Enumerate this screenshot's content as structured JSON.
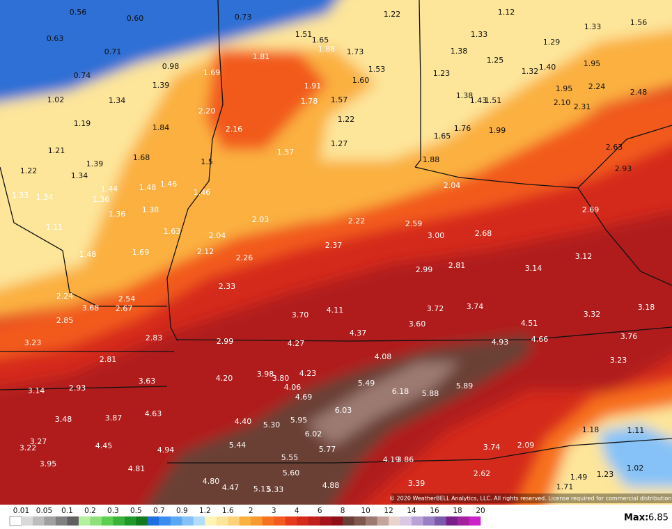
{
  "map": {
    "labels": [
      "0.56",
      "0.60",
      "0.73",
      "1.22",
      "1.12",
      "1.33",
      "1.56",
      "0.63",
      "1.51",
      "1.65",
      "1.88",
      "1.73",
      "1.33",
      "1.29",
      "0.71",
      "1.81",
      "1.38",
      "1.25",
      "1.95",
      "0.98",
      "1.69",
      "1.53",
      "1.23",
      "1.32",
      "1.40",
      "0.74",
      "1.60",
      "1.39",
      "1.91",
      "1.95",
      "2.24",
      "2.48",
      "1.02",
      "1.34",
      "1.78",
      "1.57",
      "1.38",
      "1.43",
      "1.51",
      "2.10",
      "2.31",
      "2.20",
      "1.22",
      "1.19",
      "1.84",
      "2.16",
      "1.76",
      "1.99",
      "1.65",
      "1.27",
      "2.63",
      "1.21",
      "1.57",
      "1.68",
      "1.39",
      "1.5",
      "1.88",
      "1.22",
      "2.93",
      "1.34",
      "1.46",
      "2.04",
      "1.44",
      "1.48",
      "1.46",
      "1.33",
      "1.34",
      "1.36",
      "2.69",
      "1.38",
      "1.36",
      "2.03",
      "2.22",
      "2.59",
      "1.11",
      "1.63",
      "3.00",
      "2.68",
      "2.04",
      "2.37",
      "1.48",
      "1.69",
      "2.12",
      "2.26",
      "3.12",
      "2.99",
      "2.81",
      "3.14",
      "2.33",
      "2.24",
      "2.54",
      "3.68",
      "2.67",
      "4.11",
      "3.72",
      "3.74",
      "3.18",
      "3.70",
      "3.32",
      "2.85",
      "3.60",
      "4.51",
      "4.37",
      "2.83",
      "3.76",
      "4.93",
      "4.66",
      "3.23",
      "2.99",
      "4.27",
      "4.08",
      "2.81",
      "3.23",
      "4.20",
      "3.98",
      "3.80",
      "4.23",
      "3.63",
      "5.49",
      "5.89",
      "2.93",
      "4.06",
      "3.14",
      "6.18",
      "5.88",
      "4.69",
      "3.48",
      "3.87",
      "4.63",
      "6.03",
      "4.40",
      "5.95",
      "5.30",
      "1.18",
      "1.11",
      "3.27",
      "6.02",
      "3.22",
      "4.45",
      "5.44",
      "4.94",
      "5.77",
      "3.74",
      "2.09",
      "3.95",
      "5.55",
      "4.19",
      "3.86",
      "1.02",
      "4.81",
      "5.60",
      "2.62",
      "1.23",
      "1.49",
      "4.80",
      "3.39",
      "4.47",
      "5.13",
      "5.33",
      "4.88",
      "1.71"
    ],
    "copyright": "© 2020 WeatherBELL Analytics, LLC. All rights reserved. License required for commercial distribution."
  },
  "legend": {
    "labels": [
      "0.01",
      "0.05",
      "0.1",
      "0.2",
      "0.3",
      "0.5",
      "0.7",
      "0.9",
      "1.2",
      "1.6",
      "2",
      "3",
      "4",
      "6",
      "8",
      "10",
      "12",
      "14",
      "16",
      "18",
      "20"
    ],
    "colors": [
      "#ffffff",
      "#d9d9d9",
      "#bdbdbd",
      "#a0a0a0",
      "#808080",
      "#606060",
      "#b4f0a0",
      "#8fe07a",
      "#5ccf4f",
      "#3bb33b",
      "#1f9a2a",
      "#137a1f",
      "#1e6fe0",
      "#3b8ef0",
      "#5aa8f5",
      "#86c2f8",
      "#b4dcfb",
      "#fff5b4",
      "#fde59a",
      "#fcd27a",
      "#fbb040",
      "#f99a2e",
      "#f7711f",
      "#f25a1e",
      "#e63a1c",
      "#d42a1c",
      "#c01f1c",
      "#a5141a",
      "#8f0f18",
      "#6a3f36",
      "#80574d",
      "#9c7a72",
      "#c4a59d",
      "#e8d3cf",
      "#d9c7e5",
      "#b9a3d6",
      "#9a7fc4",
      "#7b5aab",
      "#7a1f8a",
      "#a3219f",
      "#cc22c7"
    ]
  },
  "footer": {
    "max_label": "Max:",
    "max_value": "6.85"
  }
}
